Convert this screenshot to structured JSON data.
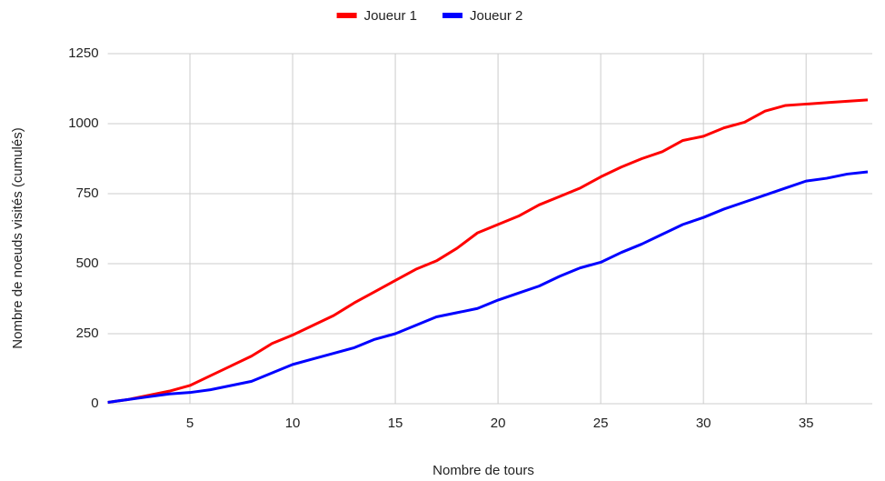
{
  "chart_data": {
    "type": "line",
    "x_label": "Nombre de tours",
    "y_label": "Nombre de noeuds visités (cumulés)",
    "x": [
      1,
      2,
      3,
      4,
      5,
      6,
      7,
      8,
      9,
      10,
      11,
      12,
      13,
      14,
      15,
      16,
      17,
      18,
      19,
      20,
      21,
      22,
      23,
      24,
      25,
      26,
      27,
      28,
      29,
      30,
      31,
      32,
      33,
      34,
      35,
      36,
      37,
      38
    ],
    "series": [
      {
        "name": "Joueur 1",
        "color": "#ff0000",
        "values": [
          5,
          15,
          30,
          45,
          65,
          100,
          135,
          170,
          215,
          245,
          280,
          315,
          360,
          400,
          440,
          480,
          510,
          555,
          610,
          640,
          670,
          710,
          740,
          770,
          810,
          845,
          875,
          900,
          940,
          955,
          985,
          1005,
          1045,
          1065,
          1070,
          1075,
          1080,
          1085
        ]
      },
      {
        "name": "Joueur 2",
        "color": "#0000ff",
        "values": [
          5,
          15,
          25,
          35,
          40,
          50,
          65,
          80,
          110,
          140,
          160,
          180,
          200,
          230,
          250,
          280,
          310,
          325,
          340,
          370,
          395,
          420,
          455,
          485,
          505,
          540,
          570,
          605,
          640,
          665,
          695,
          720,
          745,
          770,
          795,
          805,
          820,
          828
        ]
      }
    ],
    "xlim": [
      1,
      38
    ],
    "xticks": [
      5,
      10,
      15,
      20,
      25,
      30,
      35
    ],
    "ylim": [
      0,
      1250
    ],
    "yticks": [
      0,
      250,
      500,
      750,
      1000,
      1250
    ],
    "grid": true,
    "legend": "top"
  }
}
